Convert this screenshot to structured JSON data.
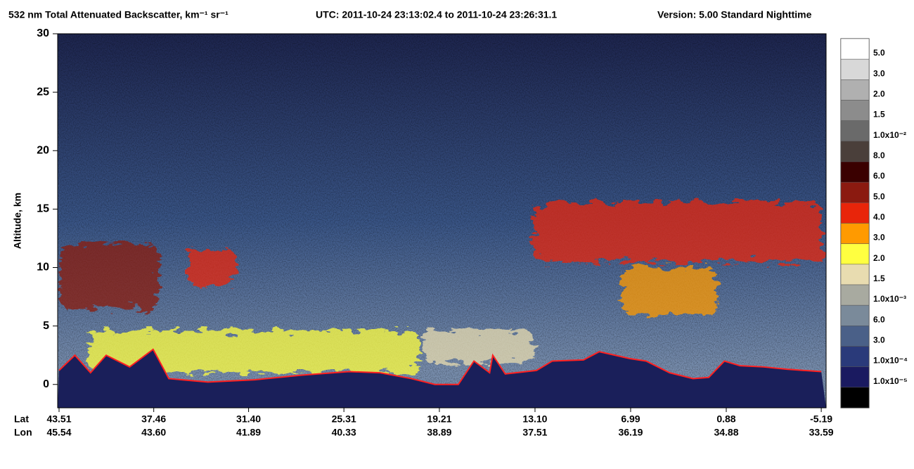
{
  "chart_data": {
    "type": "curtain",
    "title": "532 nm Total Attenuated Backscatter, km⁻¹ sr⁻¹",
    "time_range": "UTC:  2011-10-24 23:13:02.4  to  2011-10-24 23:26:31.1",
    "version": "Version: 5.00  Standard  Nighttime",
    "ylabel": "Altitude, km",
    "ylim": [
      -2,
      30
    ],
    "yticks": [
      0,
      5,
      10,
      15,
      20,
      25,
      30
    ],
    "xlim": [
      43.6,
      -5.5
    ],
    "lat_title": "Lat",
    "lon_title": "Lon",
    "xticks": [
      43.51,
      37.46,
      {
        "value": 31.4,
        "label": "31.40"
      },
      25.31,
      19.21,
      {
        "value": 13.1,
        "label": "13.10"
      },
      6.99,
      0.88,
      -5.19
    ],
    "lon_labels": [
      "45.54",
      "43.60",
      "41.89",
      "40.33",
      "38.89",
      "37.51",
      "36.19",
      "34.88",
      "33.59"
    ],
    "surface": {
      "color": "#ff2020",
      "x": [
        43.51,
        42.5,
        41.5,
        40.5,
        39,
        37.5,
        36.5,
        34,
        31,
        28,
        25,
        23,
        21,
        19.5,
        18,
        17,
        16,
        15.8,
        15,
        13,
        12,
        10,
        9,
        7,
        6,
        4.5,
        3,
        2,
        1,
        0,
        -1.5,
        -3,
        -5.19
      ],
      "values": [
        1.2,
        2.5,
        1,
        2.5,
        1.5,
        3,
        0.5,
        0.2,
        0.4,
        0.8,
        1.1,
        1,
        0.5,
        0,
        0,
        2,
        1,
        2.5,
        0.9,
        1.2,
        2,
        2.1,
        2.8,
        2.2,
        2,
        1,
        0.5,
        0.6,
        2,
        1.6,
        1.5,
        1.3,
        1.1
      ]
    },
    "layers": [
      {
        "lat": [
          43.4,
          37.2
        ],
        "alt": [
          6.5,
          12
        ],
        "color": "#8b1a10"
      },
      {
        "lat": [
          35.3,
          32.2
        ],
        "alt": [
          8.5,
          11.5
        ],
        "color": "#e8250a"
      },
      {
        "lat": [
          41.5,
          20.5
        ],
        "alt": [
          1,
          4.6
        ],
        "color": "#ffff40"
      },
      {
        "lat": [
          20.2,
          13.2
        ],
        "alt": [
          1.8,
          4.6
        ],
        "color": "#e8dcb0"
      },
      {
        "lat": [
          13.2,
          -5.2
        ],
        "alt": [
          10.5,
          15.6
        ],
        "color": "#e8250a"
      },
      {
        "lat": [
          7.5,
          1.5
        ],
        "alt": [
          6,
          10
        ],
        "color": "#ff9a00"
      }
    ],
    "colorbar": {
      "colors": [
        "#ffffff",
        "#d8d8d8",
        "#b0b0b0",
        "#8c8c8c",
        "#6a6a6a",
        "#4a3f3a",
        "#3a0000",
        "#8b1a10",
        "#e8250a",
        "#ff9a00",
        "#ffff40",
        "#e8dcb0",
        "#a8aaa0",
        "#7a8a9a",
        "#4a6088",
        "#2a3a7a",
        "#1a1a60",
        "#000000"
      ],
      "labels": [
        "5.0",
        "3.0",
        "2.0",
        "1.5",
        "1.0x10⁻²",
        "8.0",
        "6.0",
        "5.0",
        "4.0",
        "3.0",
        "2.0",
        "1.5",
        "1.0x10⁻³",
        "6.0",
        "3.0",
        "1.0x10⁻⁴",
        "1.0x10⁻⁵"
      ]
    }
  }
}
